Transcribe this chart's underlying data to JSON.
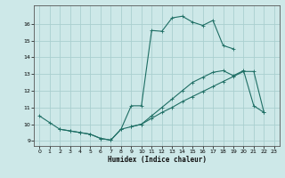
{
  "xlabel": "Humidex (Indice chaleur)",
  "ylabel": "",
  "bg_color": "#cde8e8",
  "grid_color": "#aacfcf",
  "line_color": "#1e6e64",
  "xlim": [
    -0.5,
    23.5
  ],
  "ylim": [
    8.7,
    17.1
  ],
  "xticks": [
    0,
    1,
    2,
    3,
    4,
    5,
    6,
    7,
    8,
    9,
    10,
    11,
    12,
    13,
    14,
    15,
    16,
    17,
    18,
    19,
    20,
    21,
    22,
    23
  ],
  "yticks": [
    9,
    10,
    11,
    12,
    13,
    14,
    15,
    16
  ],
  "line1_x": [
    0,
    1,
    2,
    3,
    4,
    5,
    6,
    7,
    8,
    9,
    10,
    11,
    12,
    13,
    14,
    15,
    16,
    17,
    18,
    19,
    20,
    21,
    22
  ],
  "line1_y": [
    10.5,
    10.1,
    9.7,
    9.6,
    9.5,
    9.4,
    9.15,
    9.05,
    9.7,
    11.1,
    11.1,
    15.6,
    15.55,
    16.35,
    16.45,
    16.1,
    15.9,
    16.2,
    14.7,
    14.5,
    null,
    null,
    null
  ],
  "line2_x": [
    2,
    3,
    4,
    5,
    6,
    7,
    8,
    9,
    10,
    11,
    12,
    13,
    14,
    15,
    16,
    17,
    18,
    19,
    20,
    21,
    22
  ],
  "line2_y": [
    9.7,
    9.6,
    9.5,
    9.4,
    9.15,
    9.05,
    9.7,
    9.85,
    10.0,
    10.5,
    11.0,
    11.5,
    12.0,
    12.5,
    12.8,
    13.1,
    13.2,
    12.9,
    13.2,
    11.1,
    10.7
  ],
  "line3_x": [
    9,
    10,
    11,
    12,
    13,
    14,
    15,
    16,
    17,
    18,
    19,
    20,
    21,
    22
  ],
  "line3_y": [
    9.85,
    10.0,
    10.35,
    10.7,
    11.0,
    11.35,
    11.65,
    11.95,
    12.25,
    12.55,
    12.85,
    13.15,
    13.15,
    10.7
  ]
}
